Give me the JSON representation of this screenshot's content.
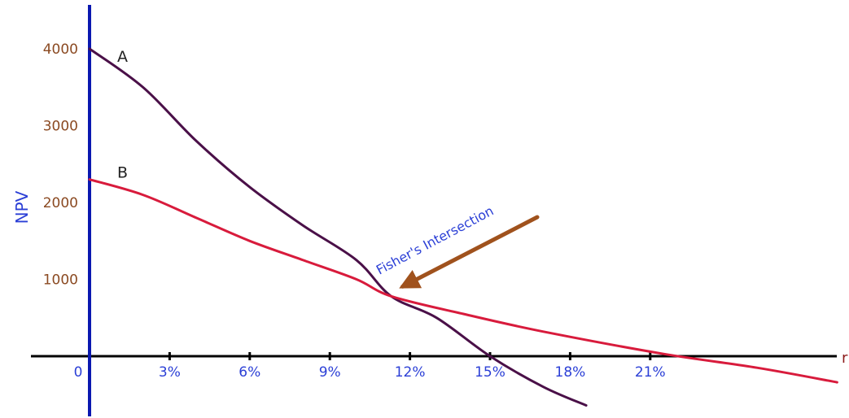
{
  "chart_data": {
    "type": "line",
    "xlabel": "r",
    "ylabel": "NPV",
    "x_ticks": [
      {
        "value": 0,
        "label": "0"
      },
      {
        "value": 3,
        "label": "3%"
      },
      {
        "value": 6,
        "label": "6%"
      },
      {
        "value": 9,
        "label": "9%"
      },
      {
        "value": 12,
        "label": "12%"
      },
      {
        "value": 15,
        "label": "15%"
      },
      {
        "value": 18,
        "label": "18%"
      },
      {
        "value": 21,
        "label": "21%"
      }
    ],
    "y_ticks": [
      {
        "value": 1000,
        "label": "1000"
      },
      {
        "value": 2000,
        "label": "2000"
      },
      {
        "value": 3000,
        "label": "3000"
      },
      {
        "value": 4000,
        "label": "4000"
      }
    ],
    "xlim": [
      -2.2,
      28.5
    ],
    "ylim": [
      -700,
      4600
    ],
    "series": [
      {
        "name": "A",
        "color": "#4A1048",
        "points": [
          [
            0,
            4000
          ],
          [
            2,
            3500
          ],
          [
            4,
            2800
          ],
          [
            6,
            2200
          ],
          [
            8,
            1700
          ],
          [
            10,
            1250
          ],
          [
            11.3,
            780
          ],
          [
            13,
            500
          ],
          [
            15,
            0
          ],
          [
            17,
            -400
          ],
          [
            18.6,
            -640
          ]
        ]
      },
      {
        "name": "B",
        "color": "#D81B3C",
        "points": [
          [
            0,
            2300
          ],
          [
            2,
            2100
          ],
          [
            4,
            1800
          ],
          [
            6,
            1500
          ],
          [
            8,
            1250
          ],
          [
            10,
            1000
          ],
          [
            11.3,
            780
          ],
          [
            14,
            550
          ],
          [
            17,
            320
          ],
          [
            21.5,
            30
          ],
          [
            25,
            -150
          ],
          [
            28,
            -340
          ]
        ]
      }
    ],
    "annotations": [
      {
        "text": "Fisher's Intersection",
        "x": 11.3,
        "y": 780,
        "arrow_color": "#A0521D"
      }
    ],
    "grid": false,
    "legend": "none"
  }
}
